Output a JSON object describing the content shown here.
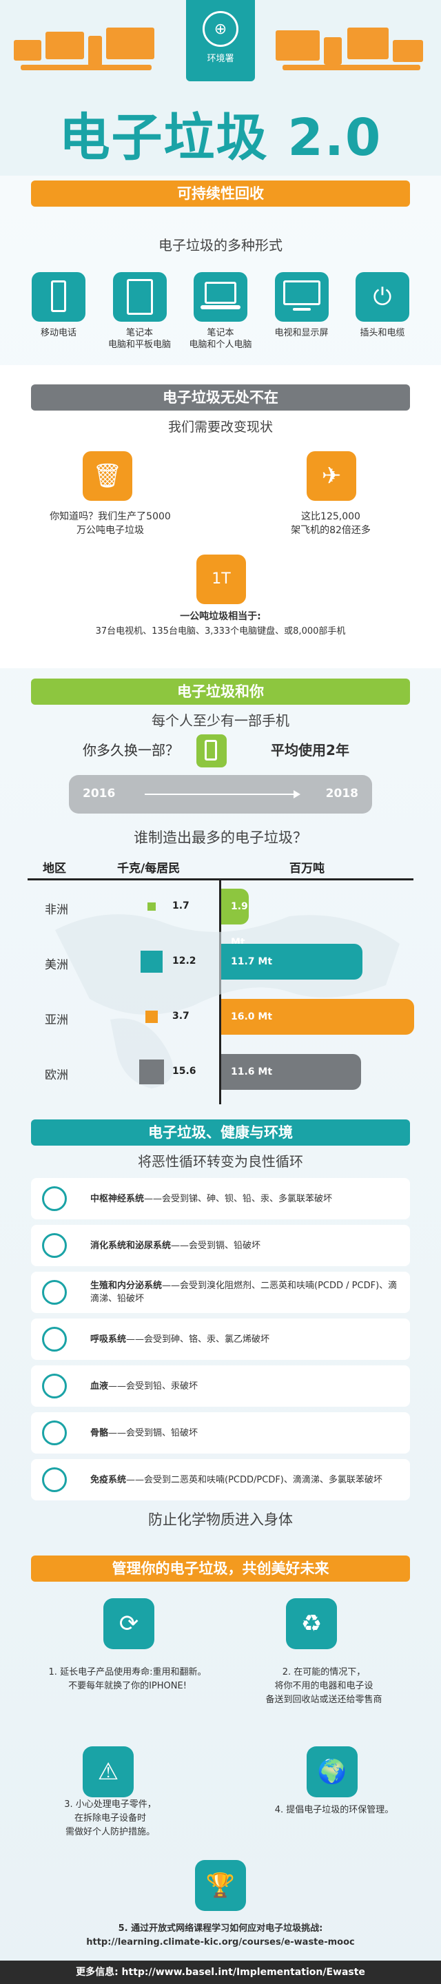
{
  "header": {
    "logo_text": "环境署",
    "title": "电子垃圾 2.0",
    "subtitle_bar": "可持续性回收"
  },
  "forms": {
    "heading": "电子垃圾的多种形式",
    "items": [
      {
        "label": "移动电话",
        "icon": "mobile-phone-icon"
      },
      {
        "label": "笔记本\n电脑和平板电脑",
        "icon": "tablet-icon"
      },
      {
        "label": "笔记本\n电脑和个人电脑",
        "icon": "laptop-icon"
      },
      {
        "label": "电视和显示屏",
        "icon": "tv-icon"
      },
      {
        "label": "插头和电缆",
        "icon": "plug-icon"
      }
    ]
  },
  "everywhere": {
    "bar": "电子垃圾无处不在",
    "heading": "我们需要改变现状",
    "fact1": "你知道吗？我们生产了5000\n万公吨电子垃圾",
    "fact2": "这比125,000\n架飞机的82倍还多",
    "fact3_title": "一公吨垃圾相当于:",
    "fact3": "37台电视机、135台电脑、3,333个电脑键盘、或8,000部手机",
    "weight_label": "1T"
  },
  "you": {
    "bar": "电子垃圾和你",
    "heading": "每个人至少有一部手机",
    "question": "你多久换一部？",
    "answer": "平均使用2年",
    "year_from": "2016",
    "year_to": "2018"
  },
  "table": {
    "heading": "谁制造出最多的电子垃圾？",
    "col_region": "地区",
    "col_kg": "千克/每居民",
    "col_mt": "百万吨",
    "rows": [
      {
        "region": "非洲",
        "kg": 1.7,
        "kg_label": "1.7",
        "mt": 1.9,
        "mt_label": "1.9 Mt",
        "color": "#8dc63f"
      },
      {
        "region": "美洲",
        "kg": 12.2,
        "kg_label": "12.2",
        "mt": 11.7,
        "mt_label": "11.7 Mt",
        "color": "#1aa3a6"
      },
      {
        "region": "亚洲",
        "kg": 3.7,
        "kg_label": "3.7",
        "mt": 16.0,
        "mt_label": "16.0 Mt",
        "color": "#f39a1f"
      },
      {
        "region": "欧洲",
        "kg": 15.6,
        "kg_label": "15.6",
        "mt": 11.6,
        "mt_label": "11.6 Mt",
        "color": "#767a7e"
      }
    ]
  },
  "health": {
    "bar": "电子垃圾、健康与环境",
    "heading": "将恶性循环转变为良性循环",
    "items": [
      {
        "title": "中枢神经系统",
        "text": "——会受到锑、砷、钡、铅、汞、多氯联苯破坏",
        "icon": "brain-icon"
      },
      {
        "title": "消化系统和泌尿系统",
        "text": "——会受到镉、铅破坏",
        "icon": "stomach-icon"
      },
      {
        "title": "生殖和内分泌系统",
        "text": "——会受到溴化阻燃剂、二恶英和呋喃(PCDD / PCDF)、滴滴涕、铅破坏",
        "icon": "uterus-icon"
      },
      {
        "title": "呼吸系统",
        "text": "——会受到砷、铬、汞、氯乙烯破坏",
        "icon": "lungs-icon"
      },
      {
        "title": "血液",
        "text": "——会受到铅、汞破坏",
        "icon": "heart-icon"
      },
      {
        "title": "骨骼",
        "text": "——会受到镉、铅破坏",
        "icon": "skull-icon"
      },
      {
        "title": "免疫系统",
        "text": "——会受到二恶英和呋喃(PCDD/PCDF)、滴滴涕、多氯联苯破坏",
        "icon": "arm-icon"
      }
    ],
    "footer": "防止化学物质进入身体"
  },
  "manage": {
    "bar": "管理你的电子垃圾，共创美好未来",
    "tips": [
      "1. 延长电子产品使用寿命:重用和翻新。\n不要每年就换了你的IPHONE!",
      "2. 在可能的情况下，\n将你不用的电器和电子设\n备送到回收站或送还给零售商",
      "3. 小心处理电子零件，\n在拆除电子设备时\n需做好个人防护措施。",
      "4. 提倡电子垃圾的环保管理。",
      "5. 通过开放式网络课程学习如何应对电子垃圾挑战:\nhttp://learning.climate-kic.org/courses/e-waste-mooc"
    ]
  },
  "footer": "更多信息: http://www.basel.int/Implementation/Ewaste"
}
